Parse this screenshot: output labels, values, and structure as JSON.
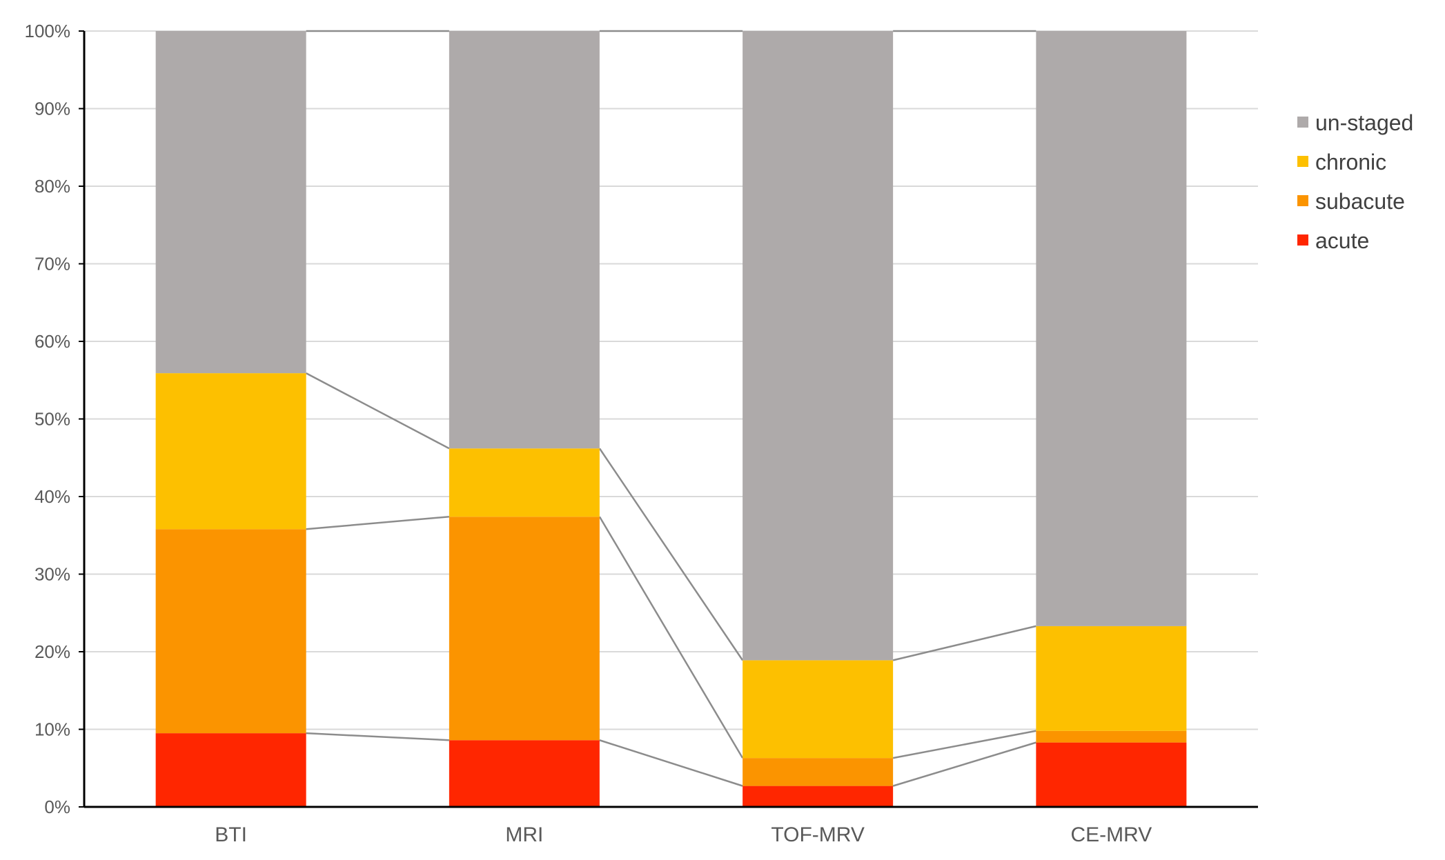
{
  "chart_data": {
    "type": "bar",
    "stacked": true,
    "normalized": true,
    "categories": [
      "BTI",
      "MRI",
      "TOF-MRV",
      "CE-MRV"
    ],
    "series": [
      {
        "name": "acute",
        "color": "#ff2600",
        "values": [
          9.5,
          8.6,
          2.7,
          8.3
        ]
      },
      {
        "name": "subacute",
        "color": "#fb9400",
        "values": [
          26.3,
          28.8,
          3.6,
          1.5
        ]
      },
      {
        "name": "chronic",
        "color": "#fdc000",
        "values": [
          20.1,
          8.8,
          12.6,
          13.5
        ]
      },
      {
        "name": "un-staged",
        "color": "#aeaaaa",
        "values": [
          44.1,
          53.8,
          81.1,
          76.7
        ]
      }
    ],
    "yticks": [
      "0%",
      "10%",
      "20%",
      "30%",
      "40%",
      "50%",
      "60%",
      "70%",
      "80%",
      "90%",
      "100%"
    ],
    "ylim": [
      0,
      100
    ],
    "grid": true,
    "series_lines": true,
    "legend_position": "right",
    "title": "",
    "xlabel": "",
    "ylabel": ""
  }
}
